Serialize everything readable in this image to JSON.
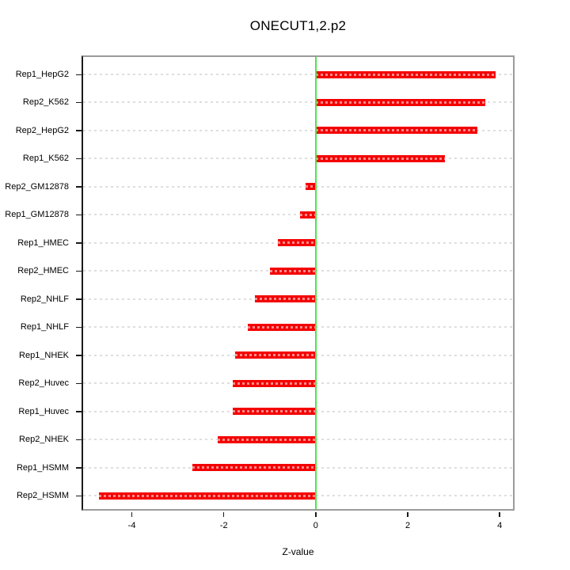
{
  "chart_data": {
    "type": "bar",
    "orientation": "horizontal",
    "title": "ONECUT1,2.p2",
    "xlabel": "Z-value",
    "ylabel": "",
    "categories": [
      "Rep1_HepG2",
      "Rep2_K562",
      "Rep2_HepG2",
      "Rep1_K562",
      "Rep2_GM12878",
      "Rep1_GM12878",
      "Rep1_HMEC",
      "Rep2_HMEC",
      "Rep2_NHLF",
      "Rep1_NHLF",
      "Rep1_NHEK",
      "Rep2_Huvec",
      "Rep1_Huvec",
      "Rep2_NHEK",
      "Rep1_HSMM",
      "Rep2_HSMM"
    ],
    "values": [
      3.91,
      3.68,
      3.51,
      2.81,
      -0.23,
      -0.35,
      -0.83,
      -0.99,
      -1.32,
      -1.48,
      -1.76,
      -1.8,
      -1.81,
      -2.14,
      -2.69,
      -4.72
    ],
    "xlim": [
      -5.06,
      4.29
    ],
    "xticks": [
      -4,
      -2,
      0,
      2,
      4
    ],
    "xtick_labels": [
      "-4",
      "-2",
      "0",
      "2",
      "4"
    ],
    "zero_line_at": 0,
    "grid": "horizontal dashed line per category",
    "legend": "none",
    "colors": {
      "bar": "#f40000",
      "zero_line": "#4ae64a",
      "gridline": "#dedede",
      "box_border": "#9b9b9b",
      "axis_line": "#1a1a1a",
      "text": "#000000"
    }
  }
}
